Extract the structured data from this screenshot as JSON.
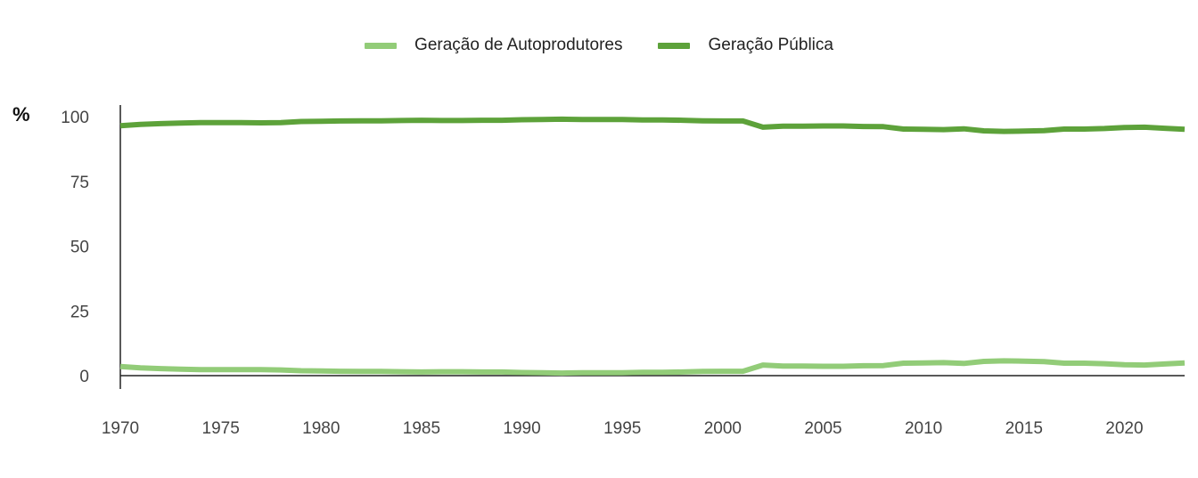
{
  "chart_data": {
    "type": "line",
    "unit_label": "%",
    "ylim": [
      0,
      100
    ],
    "xlim": [
      1970,
      2023
    ],
    "y_ticks": [
      0,
      25,
      50,
      75,
      100
    ],
    "x_ticks": [
      1970,
      1975,
      1980,
      1985,
      1990,
      1995,
      2000,
      2005,
      2010,
      2015,
      2020
    ],
    "legend_position": "top-center",
    "grid": false,
    "x": [
      1970,
      1971,
      1972,
      1973,
      1974,
      1975,
      1976,
      1977,
      1978,
      1979,
      1980,
      1981,
      1982,
      1983,
      1984,
      1985,
      1986,
      1987,
      1988,
      1989,
      1990,
      1991,
      1992,
      1993,
      1994,
      1995,
      1996,
      1997,
      1998,
      1999,
      2000,
      2001,
      2002,
      2003,
      2004,
      2005,
      2006,
      2007,
      2008,
      2009,
      2010,
      2011,
      2012,
      2013,
      2014,
      2015,
      2016,
      2017,
      2018,
      2019,
      2020,
      2021,
      2022,
      2023
    ],
    "series": [
      {
        "name": "Geração de Autoprodutores",
        "color": "#92cc78",
        "values": [
          3.5,
          3.0,
          2.7,
          2.5,
          2.3,
          2.3,
          2.3,
          2.3,
          2.2,
          1.9,
          1.8,
          1.7,
          1.6,
          1.6,
          1.5,
          1.4,
          1.5,
          1.5,
          1.4,
          1.4,
          1.2,
          1.1,
          1.0,
          1.1,
          1.1,
          1.1,
          1.3,
          1.3,
          1.4,
          1.6,
          1.7,
          1.7,
          4.1,
          3.7,
          3.7,
          3.6,
          3.6,
          3.8,
          3.9,
          4.8,
          4.9,
          5.0,
          4.7,
          5.5,
          5.7,
          5.6,
          5.4,
          4.8,
          4.8,
          4.6,
          4.2,
          4.1,
          4.5,
          4.9
        ]
      },
      {
        "name": "Geração Pública",
        "color": "#5da23a",
        "values": [
          96.5,
          97.0,
          97.3,
          97.5,
          97.7,
          97.7,
          97.7,
          97.6,
          97.7,
          98.1,
          98.2,
          98.3,
          98.4,
          98.4,
          98.5,
          98.6,
          98.5,
          98.5,
          98.6,
          98.6,
          98.8,
          98.9,
          99.0,
          98.9,
          98.9,
          98.9,
          98.7,
          98.7,
          98.6,
          98.4,
          98.3,
          98.3,
          95.9,
          96.3,
          96.3,
          96.4,
          96.4,
          96.2,
          96.1,
          95.2,
          95.1,
          95.0,
          95.3,
          94.5,
          94.3,
          94.4,
          94.6,
          95.2,
          95.2,
          95.4,
          95.8,
          95.9,
          95.5,
          95.1
        ]
      }
    ]
  }
}
